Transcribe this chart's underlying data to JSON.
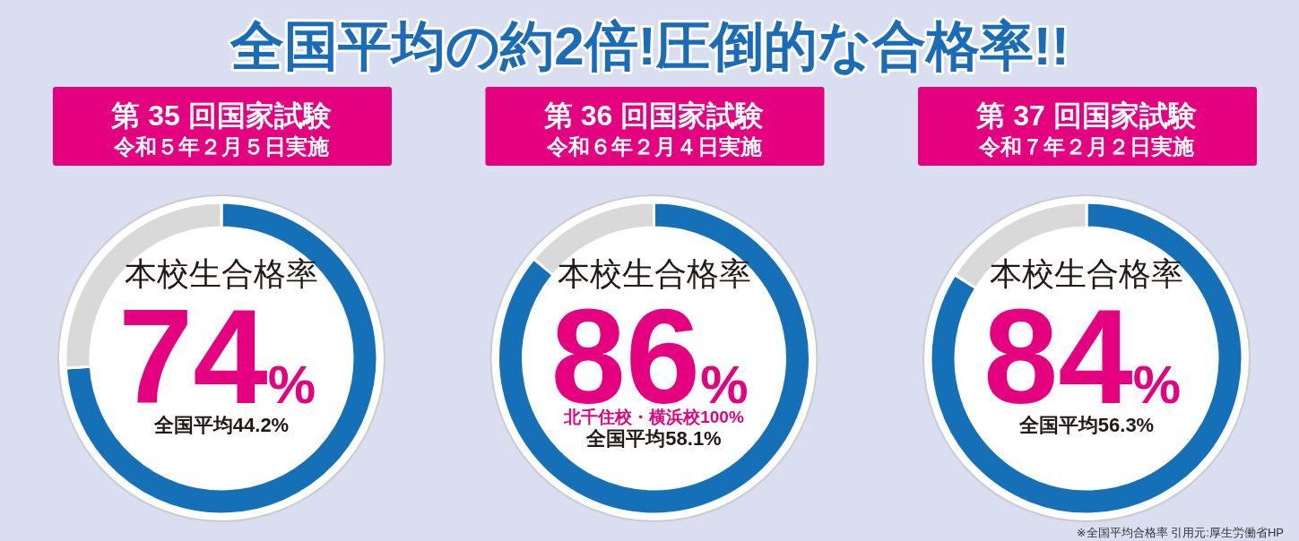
{
  "chart_data": [
    {
      "type": "other",
      "title": "全国平均の約2倍!圧倒的な合格率!!",
      "annotations": [
        "※全国平均合格率 引用元:厚生労働省HP"
      ]
    },
    {
      "type": "donut",
      "title": "第 35 回国家試験",
      "subtitle": "令和５年２月５日実施",
      "legend_title": "本校生合格率",
      "categories": [
        null,
        null
      ],
      "values": [
        74,
        26
      ],
      "colors": [
        "#1570b8",
        "#d9d9d9"
      ],
      "value_labels": [
        "74%",
        null
      ],
      "annotations": [
        "全国平均44.2%"
      ]
    },
    {
      "type": "donut",
      "title": "第 36 回国家試験",
      "subtitle": "令和６年２月４日実施",
      "legend_title": "本校生合格率",
      "categories": [
        null,
        null
      ],
      "values": [
        86,
        14
      ],
      "colors": [
        "#1570b8",
        "#d9d9d9"
      ],
      "value_labels": [
        "86%",
        null
      ],
      "annotations": [
        "北千住校・横浜校100%",
        "全国平均58.1%"
      ]
    },
    {
      "type": "donut",
      "title": "第 37 回国家試験",
      "subtitle": "令和７年２月２日実施",
      "legend_title": "本校生合格率",
      "categories": [
        null,
        null
      ],
      "values": [
        84,
        16
      ],
      "colors": [
        "#1570b8",
        "#d9d9d9"
      ],
      "value_labels": [
        "84%",
        null
      ],
      "annotations": [
        "全国平均56.3%"
      ]
    }
  ]
}
